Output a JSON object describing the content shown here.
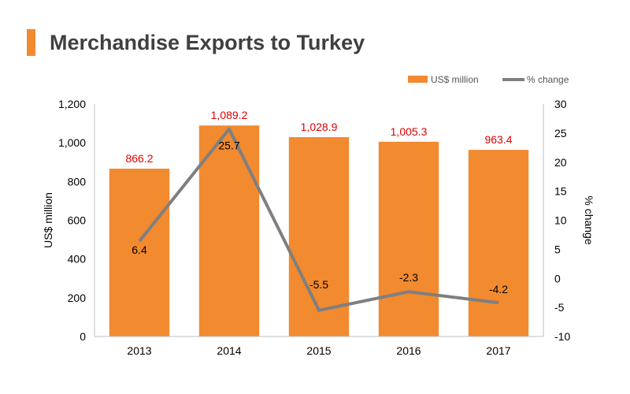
{
  "chart_data": {
    "type": "bar",
    "title": "Merchandise Exports to Turkey",
    "categories": [
      "2013",
      "2014",
      "2015",
      "2016",
      "2017"
    ],
    "series": [
      {
        "name": "US$ million",
        "type": "bar",
        "axis": "left",
        "values": [
          866.2,
          1089.2,
          1028.9,
          1005.3,
          963.4
        ],
        "labels": [
          "866.2",
          "1,089.2",
          "1,028.9",
          "1,005.3",
          "963.4"
        ],
        "color": "#F28A30",
        "label_color": "#E00000"
      },
      {
        "name": "% change",
        "type": "line",
        "axis": "right",
        "values": [
          6.4,
          25.7,
          -5.5,
          -2.3,
          -4.2
        ],
        "labels": [
          "6.4",
          "25.7",
          "-5.5",
          "-2.3",
          "-4.2"
        ],
        "color": "#7F7F7F"
      }
    ],
    "ylabel": "US$ million",
    "ylabel_right": "% change",
    "ylim": [
      0,
      1200
    ],
    "ylim_right": [
      -10,
      30
    ],
    "yticks": [
      0,
      200,
      400,
      600,
      800,
      1000,
      1200
    ],
    "yticks_labels": [
      "0",
      "200",
      "400",
      "600",
      "800",
      "1,000",
      "1,200"
    ],
    "yticks_right": [
      -10,
      -5,
      0,
      5,
      10,
      15,
      20,
      25,
      30
    ],
    "yticks_right_labels": [
      "-10",
      "-5",
      "0",
      "5",
      "10",
      "15",
      "20",
      "25",
      "30"
    ],
    "legend": "top-right",
    "grid": false
  },
  "colors": {
    "accent": "#F28A30",
    "title": "#404040",
    "axis": "#BFBFBF"
  }
}
